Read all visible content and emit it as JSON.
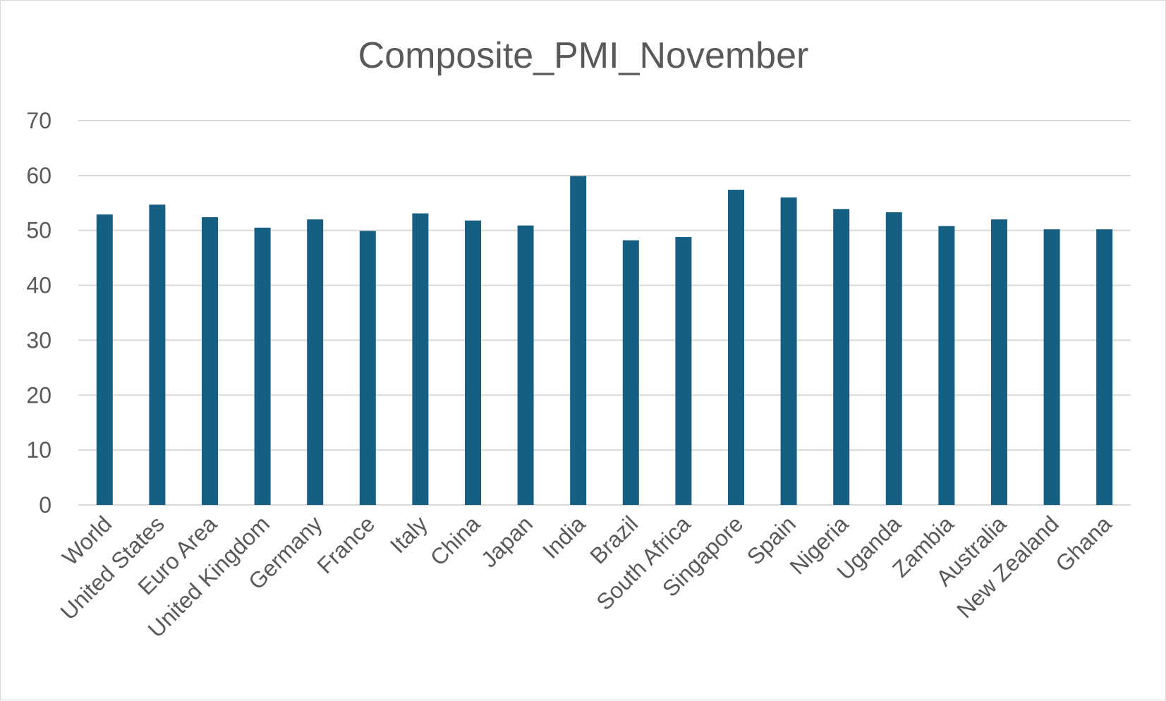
{
  "chart_data": {
    "type": "bar",
    "title": "Composite_PMI_November",
    "xlabel": "",
    "ylabel": "",
    "categories": [
      "World",
      "United States",
      "Euro Area",
      "United Kingdom",
      "Germany",
      "France",
      "Italy",
      "China",
      "Japan",
      "India",
      "Brazil",
      "South Africa",
      "Singapore",
      "Spain",
      "Nigeria",
      "Uganda",
      "Zambia",
      "Australia",
      "New Zealand",
      "Ghana"
    ],
    "values": [
      52.9,
      54.7,
      52.4,
      50.5,
      52.0,
      49.9,
      53.1,
      51.8,
      50.9,
      59.9,
      48.2,
      48.8,
      57.4,
      56.0,
      53.9,
      53.3,
      50.8,
      52.0,
      50.2,
      50.2
    ],
    "ylim": [
      0,
      70
    ],
    "yticks": [
      0,
      10,
      20,
      30,
      40,
      50,
      60,
      70
    ],
    "grid": true,
    "legend": "none",
    "colors": {
      "bar": "#155f82",
      "grid": "#d9d9d9",
      "text": "#595959"
    }
  }
}
